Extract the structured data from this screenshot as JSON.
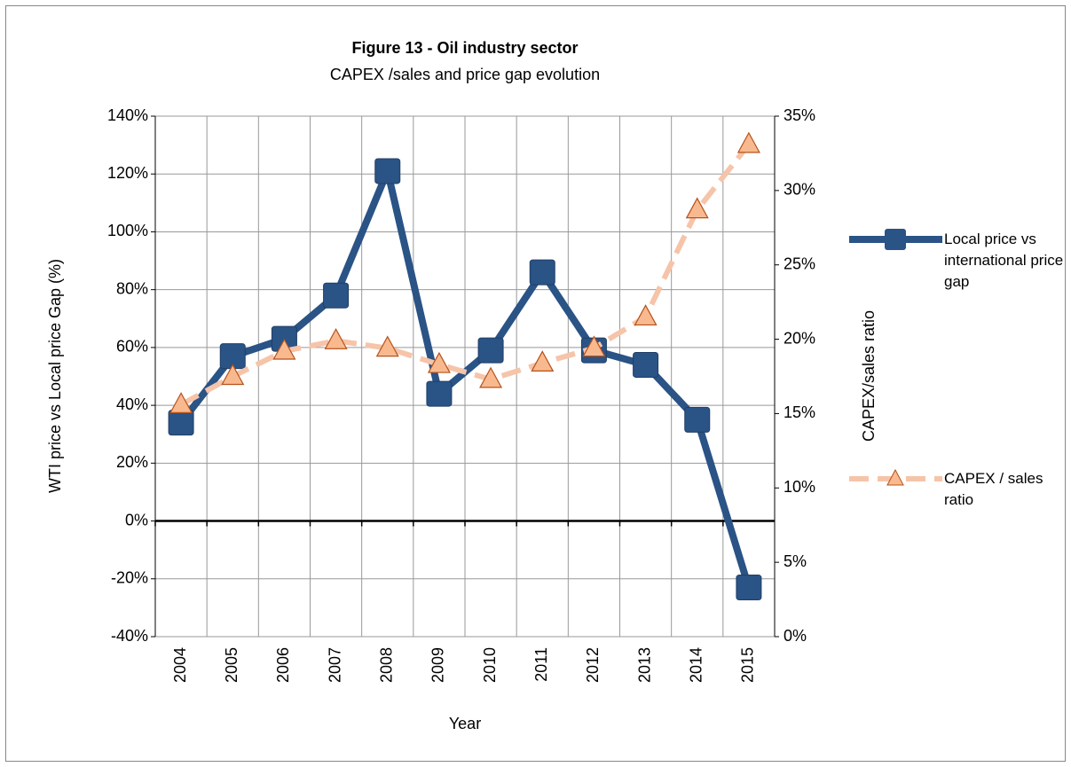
{
  "chart_data": {
    "type": "line",
    "title": "Figure 13 - Oil industry sector",
    "subtitle": "CAPEX /sales and price gap evolution",
    "x_label": "Year",
    "y_label": "WTI price vs Local price Gap (%)",
    "y2_label": "CAPEX/sales ratio",
    "categories": [
      "2004",
      "2005",
      "2006",
      "2007",
      "2008",
      "2009",
      "2010",
      "2011",
      "2012",
      "2013",
      "2014",
      "2015"
    ],
    "series": [
      {
        "name": "Local price vs international price gap",
        "color": "#2a5386",
        "marker": "square",
        "values": [
          34,
          57,
          63,
          78,
          121,
          44,
          59,
          86,
          59,
          54,
          35,
          -23
        ]
      },
      {
        "name": "CAPEX / sales ratio",
        "color": "#f6c4a9",
        "marker": "triangle",
        "axis": "y2",
        "values": [
          15.6,
          17.5,
          19.2,
          19.9,
          19.4,
          18.3,
          17.3,
          18.4,
          19.4,
          21.5,
          28.7,
          33.1
        ]
      }
    ],
    "ylim": [
      -40,
      140
    ],
    "yticks": [
      {
        "value": -40,
        "label": "-40%"
      },
      {
        "value": -20,
        "label": "-20%"
      },
      {
        "value": 0,
        "label": "0%"
      },
      {
        "value": 20,
        "label": "20%"
      },
      {
        "value": 40,
        "label": "40%"
      },
      {
        "value": 60,
        "label": "60%"
      },
      {
        "value": 80,
        "label": "80%"
      },
      {
        "value": 100,
        "label": "100%"
      },
      {
        "value": 120,
        "label": "120%"
      },
      {
        "value": 140,
        "label": "140%"
      }
    ],
    "y2lim": [
      0,
      35
    ],
    "y2ticks": [
      {
        "value": 0,
        "label": "0%"
      },
      {
        "value": 5,
        "label": "5%"
      },
      {
        "value": 10,
        "label": "10%"
      },
      {
        "value": 15,
        "label": "15%"
      },
      {
        "value": 20,
        "label": "20%"
      },
      {
        "value": 25,
        "label": "25%"
      },
      {
        "value": 30,
        "label": "30%"
      },
      {
        "value": 35,
        "label": "35%"
      }
    ],
    "grid": true,
    "legend": "right"
  }
}
